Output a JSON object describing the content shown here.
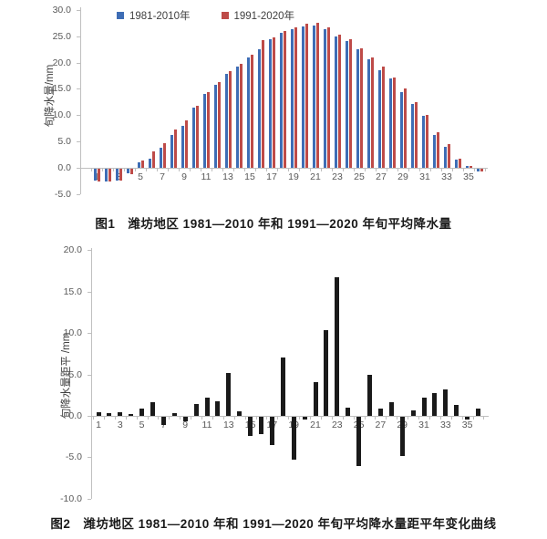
{
  "figure1": {
    "caption": "图1　潍坊地区 1981—2010 年和 1991—2020 年旬平均降水量"
  },
  "figure2": {
    "caption": "图2　潍坊地区 1981—2010 年和 1991—2020 年旬平均降水量距平年变化曲线"
  },
  "chart_data": [
    {
      "type": "bar",
      "title": "图1 潍坊地区1981—2010年和1991—2020年旬平均降水量",
      "xlabel": "",
      "ylabel": "旬降水量/mm",
      "ylim": [
        -5,
        30
      ],
      "yticks": [
        30,
        25,
        20,
        15,
        10,
        5,
        0,
        -5
      ],
      "grid": false,
      "legend_position": "top",
      "categories": [
        1,
        2,
        3,
        4,
        5,
        6,
        7,
        8,
        9,
        10,
        11,
        12,
        13,
        14,
        15,
        16,
        17,
        18,
        19,
        20,
        21,
        22,
        23,
        24,
        25,
        26,
        27,
        28,
        29,
        30,
        31,
        32,
        33,
        34,
        35,
        36
      ],
      "xtick_labels": [
        1,
        3,
        5,
        7,
        9,
        11,
        13,
        15,
        17,
        19,
        21,
        23,
        25,
        27,
        29,
        31,
        33,
        35
      ],
      "series": [
        {
          "name": "1981-2010年",
          "color": "#3E6DB5",
          "values": [
            -2.3,
            -2.4,
            -2.2,
            -0.9,
            1.0,
            1.8,
            3.8,
            6.3,
            8.0,
            11.4,
            14.0,
            15.8,
            17.9,
            19.3,
            21.0,
            22.6,
            24.4,
            25.7,
            26.3,
            26.9,
            27.0,
            26.4,
            25.0,
            24.1,
            22.5,
            20.6,
            18.6,
            17.0,
            14.4,
            12.2,
            9.8,
            6.2,
            4.0,
            1.6,
            0.4,
            -0.5
          ]
        },
        {
          "name": "1991-2020年",
          "color": "#BE4B48",
          "values": [
            -2.4,
            -2.5,
            -2.3,
            -1.0,
            1.4,
            3.1,
            4.7,
            7.3,
            9.0,
            11.8,
            14.4,
            16.3,
            18.3,
            19.8,
            21.5,
            24.2,
            24.8,
            26.0,
            26.7,
            27.4,
            27.6,
            26.7,
            25.4,
            24.4,
            22.8,
            20.9,
            19.3,
            17.1,
            15.0,
            12.5,
            10.0,
            6.8,
            4.5,
            1.8,
            0.4,
            -0.6
          ]
        }
      ]
    },
    {
      "type": "bar",
      "title": "图2 潍坊地区1981—2010年和1991—2020年旬平均降水量距平年变化曲线",
      "xlabel": "",
      "ylabel": "旬降水量距平 /mm",
      "ylim": [
        -10,
        20
      ],
      "yticks": [
        20,
        15,
        10,
        5,
        0,
        -5,
        -10
      ],
      "grid": false,
      "legend_position": "none",
      "categories": [
        1,
        2,
        3,
        4,
        5,
        6,
        7,
        8,
        9,
        10,
        11,
        12,
        13,
        14,
        15,
        16,
        17,
        18,
        19,
        20,
        21,
        22,
        23,
        24,
        25,
        26,
        27,
        28,
        29,
        30,
        31,
        32,
        33,
        34,
        35,
        36
      ],
      "xtick_labels": [
        1,
        3,
        5,
        7,
        9,
        11,
        13,
        15,
        17,
        19,
        21,
        23,
        25,
        27,
        29,
        31,
        33,
        35
      ],
      "series": [
        {
          "name": "旬平均降水量距平",
          "color": "#1a1a1a",
          "values": [
            0.4,
            0.3,
            0.4,
            0.2,
            0.9,
            1.6,
            -1.0,
            0.3,
            -0.6,
            1.4,
            2.2,
            1.8,
            5.2,
            0.5,
            -2.3,
            -2.1,
            -3.4,
            7.1,
            -5.2,
            -0.3,
            4.1,
            10.4,
            16.7,
            1.0,
            -5.9,
            5.0,
            0.9,
            1.6,
            -4.7,
            0.7,
            2.2,
            2.7,
            3.2,
            1.3,
            -0.3,
            0.9
          ]
        }
      ]
    }
  ]
}
